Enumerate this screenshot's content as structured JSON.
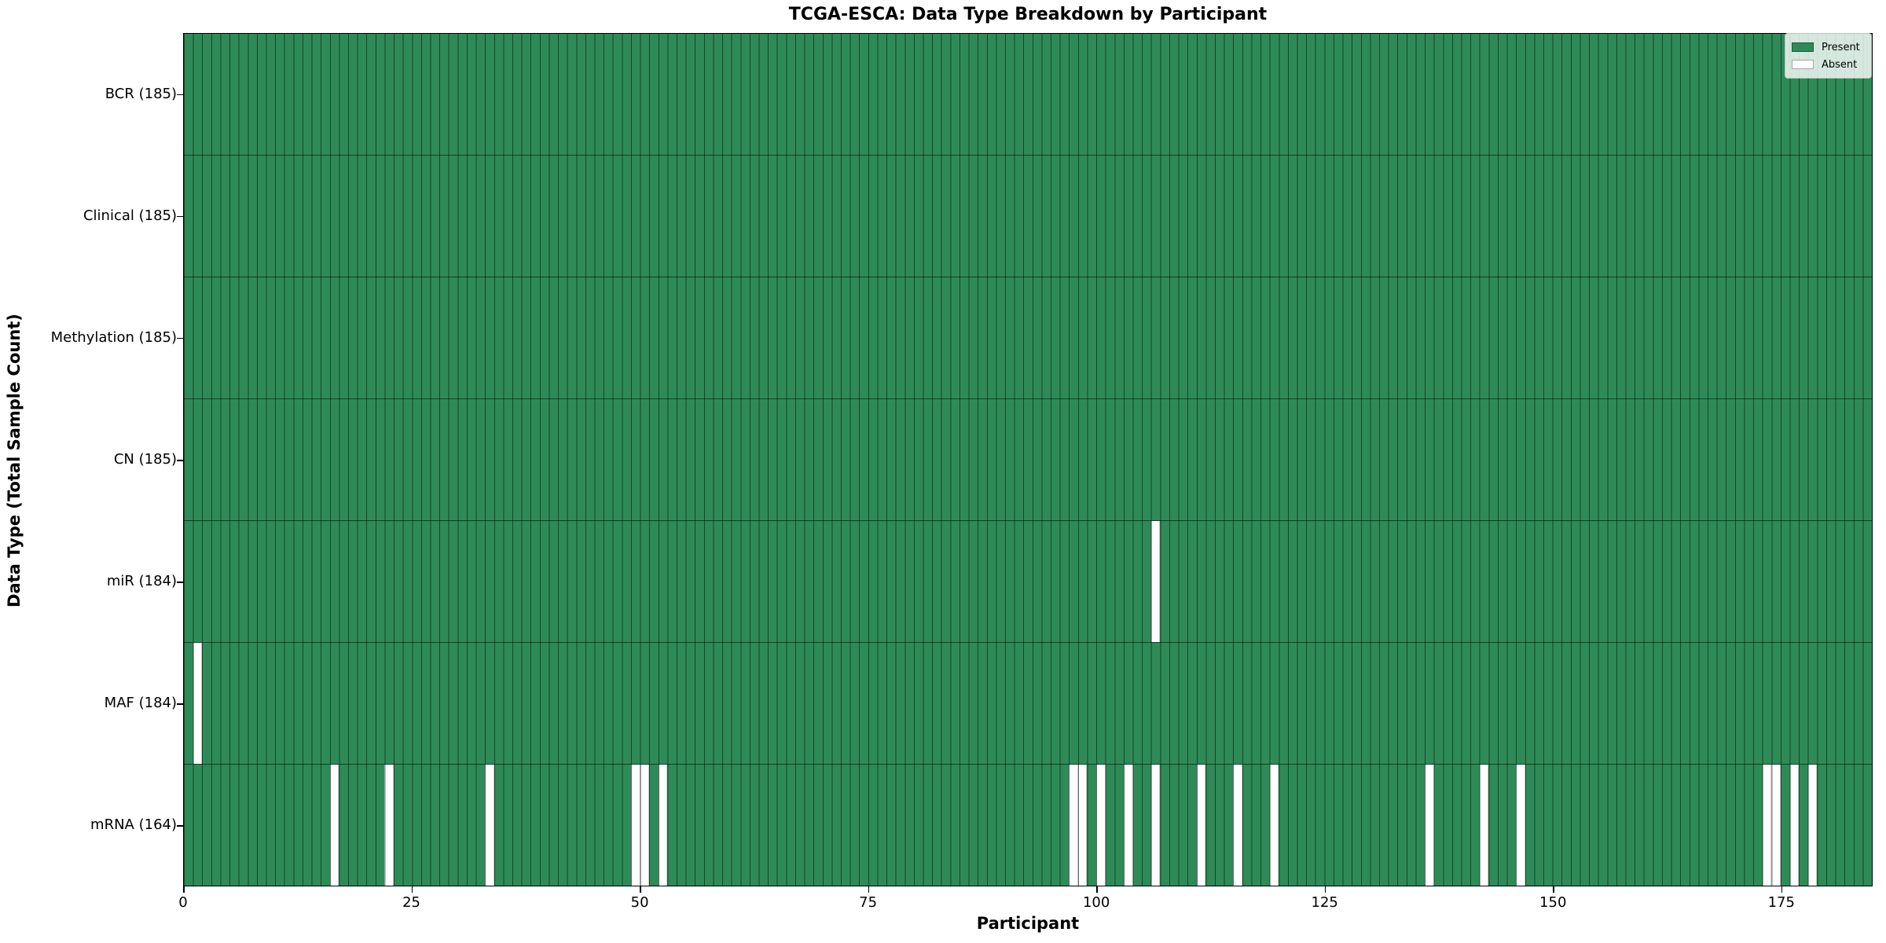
{
  "title": "TCGA-ESCA: Data Type Breakdown by Participant",
  "legend": {
    "present_label": "Present",
    "absent_label": "Absent"
  },
  "colors": {
    "present": "#2E8B57",
    "absent": "#FFFFFF",
    "grid": "rgba(0,0,0,0.5)"
  },
  "chart_data": {
    "type": "heatmap",
    "title": "TCGA-ESCA: Data Type Breakdown by Participant",
    "xlabel": "Participant",
    "ylabel": "Data Type (Total Sample Count)",
    "x_range": [
      0,
      185
    ],
    "n_participants": 185,
    "x_ticks": [
      0,
      25,
      50,
      75,
      100,
      125,
      150,
      175
    ],
    "legend_entries": [
      "Present",
      "Absent"
    ],
    "legend_position": "upper right",
    "rows": [
      {
        "label": "BCR (185)",
        "data_type": "BCR",
        "present_count": 185,
        "absent_participants": []
      },
      {
        "label": "Clinical (185)",
        "data_type": "Clinical",
        "present_count": 185,
        "absent_participants": []
      },
      {
        "label": "Methylation (185)",
        "data_type": "Methylation",
        "present_count": 185,
        "absent_participants": []
      },
      {
        "label": "CN (185)",
        "data_type": "CN",
        "present_count": 185,
        "absent_participants": []
      },
      {
        "label": "miR (184)",
        "data_type": "miR",
        "present_count": 184,
        "absent_participants": [
          106
        ]
      },
      {
        "label": "MAF (184)",
        "data_type": "MAF",
        "present_count": 184,
        "absent_participants": [
          1
        ]
      },
      {
        "label": "mRNA (164)",
        "data_type": "mRNA",
        "present_count": 164,
        "absent_participants": [
          16,
          22,
          33,
          49,
          50,
          52,
          97,
          98,
          100,
          103,
          106,
          111,
          115,
          119,
          136,
          142,
          146,
          173,
          174,
          176,
          178
        ]
      }
    ]
  }
}
